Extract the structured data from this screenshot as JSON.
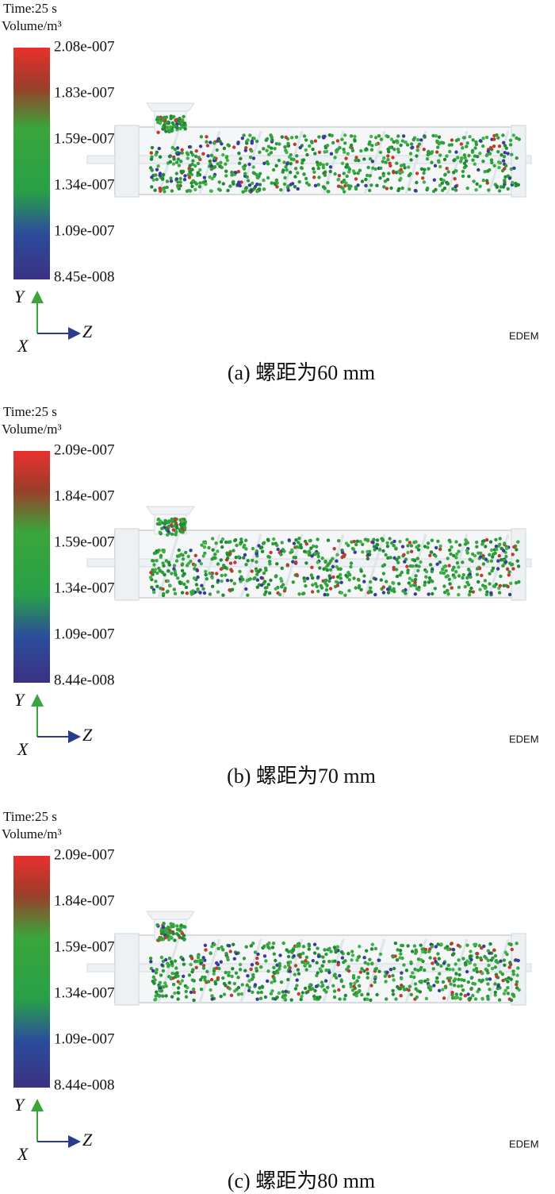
{
  "panels": [
    {
      "time": "Time:25 s",
      "volume": "Volume/m³",
      "colorbar_labels": [
        "2.08e-007",
        "1.83e-007",
        "1.59e-007",
        "1.34e-007",
        "1.09e-007",
        "8.45e-008"
      ],
      "axes": {
        "y": "Y",
        "z": "Z",
        "x": "X"
      },
      "logo": "EDEM",
      "caption": "(a)  螺距为60 mm"
    },
    {
      "time": "Time:25 s",
      "volume": "Volume/m³",
      "colorbar_labels": [
        "2.09e-007",
        "1.84e-007",
        "1.59e-007",
        "1.34e-007",
        "1.09e-007",
        "8.44e-008"
      ],
      "axes": {
        "y": "Y",
        "z": "Z",
        "x": "X"
      },
      "logo": "EDEM",
      "caption": "(b)  螺距为70 mm"
    },
    {
      "time": "Time:25 s",
      "volume": "Volume/m³",
      "colorbar_labels": [
        "2.09e-007",
        "1.84e-007",
        "1.59e-007",
        "1.34e-007",
        "1.09e-007",
        "8.44e-008"
      ],
      "axes": {
        "y": "Y",
        "z": "Z",
        "x": "X"
      },
      "logo": "EDEM",
      "caption": "(c)  螺距为80 mm"
    }
  ]
}
